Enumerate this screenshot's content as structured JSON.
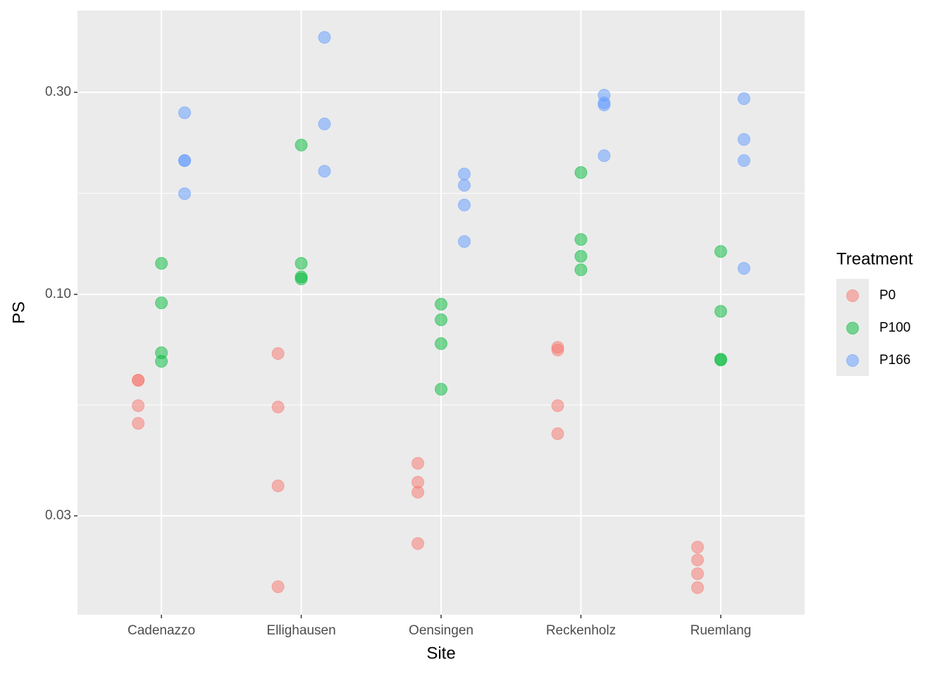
{
  "chart_data": {
    "type": "scatter",
    "x_label": "Site",
    "y_label": "PS",
    "categories": [
      "Cadenazzo",
      "Ellighausen",
      "Oensingen",
      "Reckenholz",
      "Ruemlang"
    ],
    "log_y": true,
    "ylim": [
      0.01752,
      0.468
    ],
    "yticks": [
      {
        "value": 0.3,
        "label": "0.30"
      },
      {
        "value": 0.1,
        "label": "0.10"
      },
      0.03
    ],
    "minor_yticks": [
      0.1732,
      0.0548
    ],
    "grid": true,
    "legend_title": "Treatment",
    "legend_position": "right",
    "series": [
      {
        "name": "P0",
        "color": "#F8766D",
        "x": [
          "Cadenazzo",
          "Cadenazzo",
          "Cadenazzo",
          "Cadenazzo",
          "Ellighausen",
          "Ellighausen",
          "Ellighausen",
          "Ellighausen",
          "Oensingen",
          "Oensingen",
          "Oensingen",
          "Oensingen",
          "Reckenholz",
          "Reckenholz",
          "Reckenholz",
          "Reckenholz",
          "Ruemlang",
          "Ruemlang",
          "Ruemlang",
          "Ruemlang"
        ],
        "values": [
          0.0627,
          0.0627,
          0.0546,
          0.0496,
          0.0725,
          0.0542,
          0.0353,
          0.0204,
          0.0399,
          0.036,
          0.0341,
          0.0258,
          0.075,
          0.0739,
          0.0546,
          0.0469,
          0.0253,
          0.0236,
          0.0219,
          0.0203
        ]
      },
      {
        "name": "P100",
        "color": "#00BA38",
        "x": [
          "Cadenazzo",
          "Cadenazzo",
          "Cadenazzo",
          "Cadenazzo",
          "Ellighausen",
          "Ellighausen",
          "Ellighausen",
          "Ellighausen",
          "Oensingen",
          "Oensingen",
          "Oensingen",
          "Oensingen",
          "Reckenholz",
          "Reckenholz",
          "Reckenholz",
          "Reckenholz",
          "Ruemlang",
          "Ruemlang",
          "Ruemlang",
          "Ruemlang"
        ],
        "values": [
          0.1184,
          0.0955,
          0.0728,
          0.0695,
          0.2252,
          0.1184,
          0.11,
          0.1088,
          0.0948,
          0.0871,
          0.0765,
          0.0597,
          0.194,
          0.1348,
          0.123,
          0.1143,
          0.1263,
          0.0912,
          0.0703,
          0.07
        ]
      },
      {
        "name": "P166",
        "color": "#619CFF",
        "x": [
          "Cadenazzo",
          "Cadenazzo",
          "Cadenazzo",
          "Cadenazzo",
          "Ellighausen",
          "Ellighausen",
          "Ellighausen",
          "Oensingen",
          "Oensingen",
          "Oensingen",
          "Oensingen",
          "Reckenholz",
          "Reckenholz",
          "Reckenholz",
          "Reckenholz",
          "Ruemlang",
          "Ruemlang",
          "Ruemlang",
          "Ruemlang"
        ],
        "values": [
          0.2685,
          0.207,
          0.207,
          0.1729,
          0.4045,
          0.2526,
          0.1954,
          0.1924,
          0.181,
          0.1626,
          0.1333,
          0.2954,
          0.2833,
          0.2801,
          0.2126,
          0.2899,
          0.2322,
          0.207,
          0.1152
        ]
      }
    ]
  }
}
